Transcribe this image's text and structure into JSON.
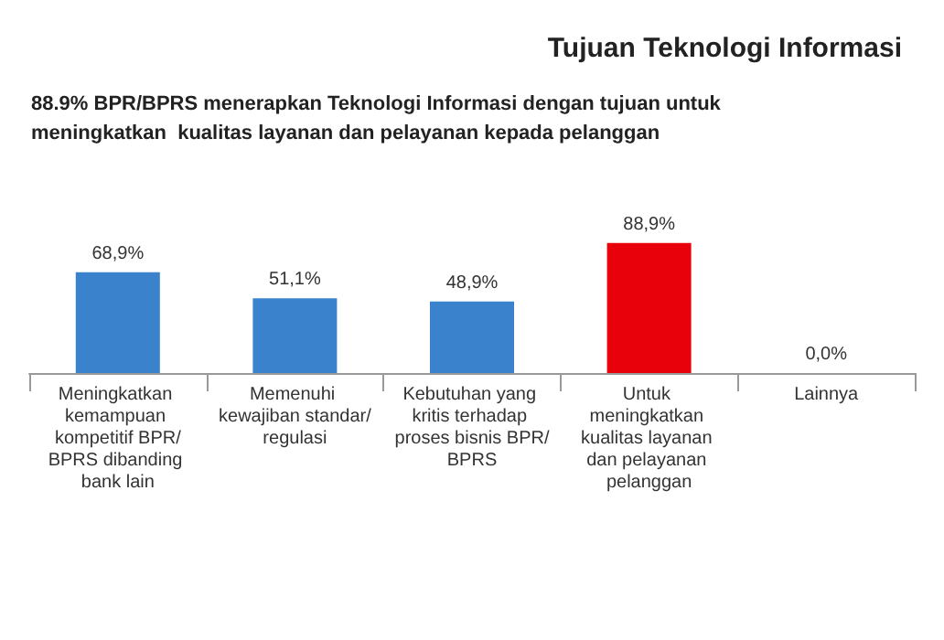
{
  "chart_data": {
    "type": "bar",
    "title": "Tujuan Teknologi Informasi",
    "subtitle": "88.9% BPR/BPRS menerapkan Teknologi Informasi dengan tujuan untuk meningkatkan  kualitas layanan dan pelayanan kepada pelanggan",
    "categories": [
      "Meningkatkan kemampuan kompetitif BPR/BPRS dibanding bank lain",
      "Memenuhi kewajiban standar/regulasi",
      "Kebutuhan yang kritis terhadap proses bisnis BPR/BPRS",
      "Untuk meningkatkan kualitas layanan dan pelayanan pelanggan",
      "Lainnya"
    ],
    "values": [
      68.9,
      51.1,
      48.9,
      88.9,
      0.0
    ],
    "colors": [
      "#3a83cc",
      "#3a83cc",
      "#3a83cc",
      "#e8000b",
      "#3a83cc"
    ],
    "value_labels": [
      "68,9%",
      "51,1%",
      "48,9%",
      "88,9%",
      "0,0%"
    ]
  }
}
